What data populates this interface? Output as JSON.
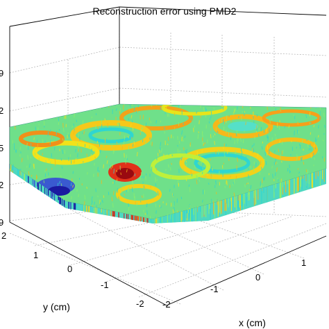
{
  "chart_data": {
    "type": "surface",
    "title": "Reconstruction error using PMD2",
    "xlabel": "x (cm)",
    "ylabel": "y (cm)",
    "zlabel": "",
    "x_ticks": [
      "-2",
      "-1",
      "0",
      "1"
    ],
    "y_ticks": [
      "-2",
      "-1",
      "0",
      "1",
      "2"
    ],
    "z_ticks": [
      "9",
      "2",
      "5",
      "2",
      "9"
    ],
    "xlim": [
      -2,
      2
    ],
    "ylim": [
      -2,
      2
    ],
    "colormap": "jet",
    "grid": true,
    "colors": {
      "low": "#1a1aa0",
      "mid_low": "#2fd6d0",
      "mid": "#8fef6a",
      "mid_high": "#f2e21a",
      "high": "#c8141a"
    }
  }
}
